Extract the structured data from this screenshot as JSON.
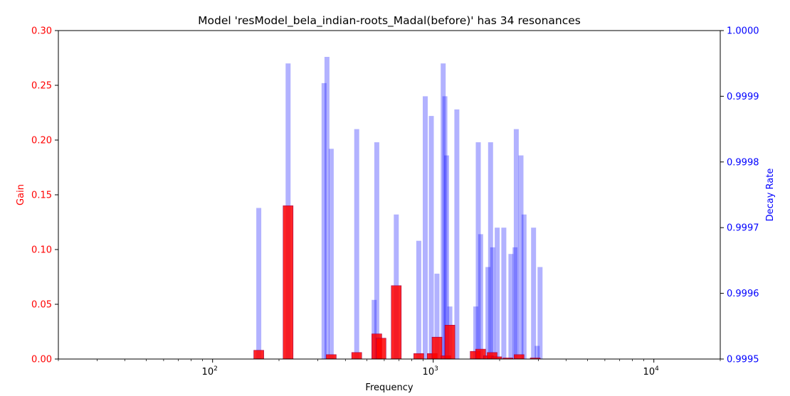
{
  "chart_data": {
    "type": "bar",
    "title": "Model 'resModel_bela_indian-roots_Madal(before)' has 34 resonances",
    "xlabel": "Frequency",
    "ylabel_left": "Gain",
    "ylabel_right": "Decay Rate",
    "x_scale": "log",
    "xlim": [
      20,
      20000
    ],
    "x_ticks": [
      {
        "value": 100,
        "base": "10",
        "exp": "2"
      },
      {
        "value": 1000,
        "base": "10",
        "exp": "3"
      },
      {
        "value": 10000,
        "base": "10",
        "exp": "4"
      }
    ],
    "ylim_left": [
      0,
      0.3
    ],
    "yticks_left": [
      "0.00",
      "0.05",
      "0.10",
      "0.15",
      "0.20",
      "0.25",
      "0.30"
    ],
    "ylim_right": [
      0.9995,
      1.0
    ],
    "yticks_right": [
      "0.9995",
      "0.9996",
      "0.9997",
      "0.9998",
      "0.9999",
      "1.0000"
    ],
    "colors": {
      "gain": "#ff0000",
      "decay": "#0000ff",
      "left_axis_text": "#ff0000",
      "right_axis_text": "#0000ff",
      "overlap": "#a0004a"
    },
    "series": [
      {
        "name": "Gain",
        "axis": "left",
        "points": [
          [
            162,
            0.008
          ],
          [
            220,
            0.14
          ],
          [
            345,
            0.004
          ],
          [
            450,
            0.006
          ],
          [
            555,
            0.023
          ],
          [
            580,
            0.019
          ],
          [
            680,
            0.067
          ],
          [
            860,
            0.005
          ],
          [
            990,
            0.005
          ],
          [
            1040,
            0.02
          ],
          [
            1140,
            0.003
          ],
          [
            1190,
            0.031
          ],
          [
            1550,
            0.007
          ],
          [
            1640,
            0.009
          ],
          [
            1780,
            0.003
          ],
          [
            1850,
            0.006
          ],
          [
            1940,
            0.002
          ],
          [
            2180,
            0.001
          ],
          [
            2450,
            0.004
          ],
          [
            2900,
            0.001
          ]
        ]
      },
      {
        "name": "Decay Rate",
        "axis": "right",
        "points": [
          [
            162,
            0.99973
          ],
          [
            220,
            0.99995
          ],
          [
            320,
            0.99992
          ],
          [
            330,
            0.99996
          ],
          [
            345,
            0.99982
          ],
          [
            450,
            0.99985
          ],
          [
            540,
            0.99959
          ],
          [
            555,
            0.99983
          ],
          [
            680,
            0.99972
          ],
          [
            860,
            0.99968
          ],
          [
            920,
            0.9999
          ],
          [
            980,
            0.99987
          ],
          [
            1040,
            0.99963
          ],
          [
            1110,
            0.99995
          ],
          [
            1130,
            0.9999
          ],
          [
            1150,
            0.99981
          ],
          [
            1190,
            0.99958
          ],
          [
            1280,
            0.99988
          ],
          [
            1560,
            0.99958
          ],
          [
            1600,
            0.99983
          ],
          [
            1640,
            0.99969
          ],
          [
            1770,
            0.99964
          ],
          [
            1820,
            0.99983
          ],
          [
            1860,
            0.99967
          ],
          [
            1950,
            0.9997
          ],
          [
            2090,
            0.9997
          ],
          [
            2250,
            0.99966
          ],
          [
            2350,
            0.99967
          ],
          [
            2380,
            0.99985
          ],
          [
            2500,
            0.99981
          ],
          [
            2580,
            0.99972
          ],
          [
            2850,
            0.9997
          ],
          [
            2960,
            0.99952
          ],
          [
            3050,
            0.99964
          ]
        ]
      }
    ],
    "legend": "none",
    "grid": false
  }
}
